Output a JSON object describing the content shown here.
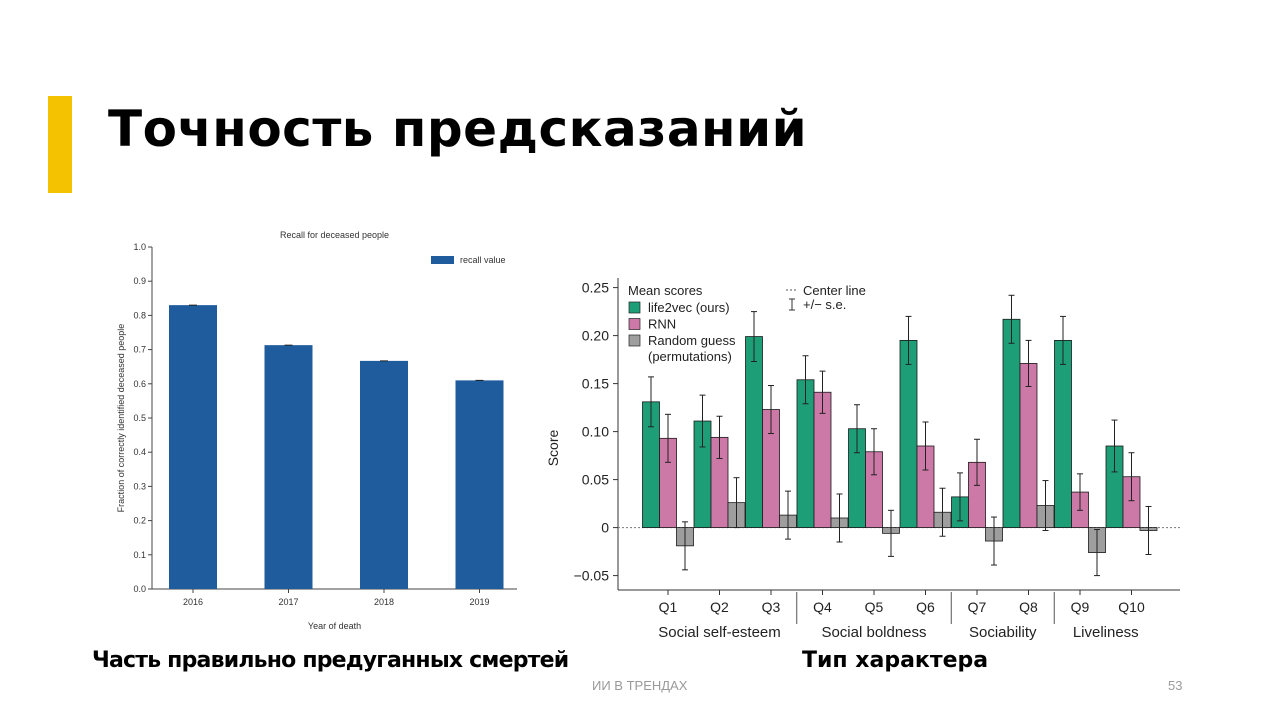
{
  "slide": {
    "title": "Точность предсказаний",
    "accent_color": "#F5C200",
    "caption_left": "Часть правильно предуганных смертей",
    "caption_right": "Тип характера",
    "footer": "ИИ В ТРЕНДАХ",
    "page_number": "53"
  },
  "chart_data": [
    {
      "type": "bar",
      "title": "Recall for deceased people",
      "xlabel": "Year of death",
      "ylabel": "Fraction of correctly identified deceased people",
      "categories": [
        "2016",
        "2017",
        "2018",
        "2019"
      ],
      "series": [
        {
          "name": "recall value",
          "values": [
            0.83,
            0.713,
            0.667,
            0.61
          ],
          "color": "#1F5C9E"
        }
      ],
      "ylim": [
        0.0,
        1.0
      ],
      "yticks": [
        0.0,
        0.1,
        0.2,
        0.3,
        0.4,
        0.5,
        0.6,
        0.7,
        0.8,
        0.9,
        1.0
      ],
      "ytick_labels": [
        "0.0",
        "0.1",
        "0.2",
        "0.3",
        "0.4",
        "0.5",
        "0.6",
        "0.7",
        "0.8",
        "0.9",
        "1.0"
      ],
      "legend_position": "top-right",
      "grid": false
    },
    {
      "type": "bar",
      "ylabel": "Score",
      "categories": [
        "Q1",
        "Q2",
        "Q3",
        "Q4",
        "Q5",
        "Q6",
        "Q7",
        "Q8",
        "Q9",
        "Q10"
      ],
      "groups": [
        {
          "label": "Social self-esteem",
          "categories": [
            "Q1",
            "Q2",
            "Q3"
          ]
        },
        {
          "label": "Social boldness",
          "categories": [
            "Q4",
            "Q5",
            "Q6"
          ]
        },
        {
          "label": "Sociability",
          "categories": [
            "Q7",
            "Q8"
          ]
        },
        {
          "label": "Liveliness",
          "categories": [
            "Q9",
            "Q10"
          ]
        }
      ],
      "legend_title": "Mean scores",
      "legend_notes": [
        "Center line",
        "+/− s.e."
      ],
      "series": [
        {
          "name": "life2vec (ours)",
          "color": "#1E9E76",
          "values": [
            0.131,
            0.111,
            0.199,
            0.154,
            0.103,
            0.195,
            0.032,
            0.217,
            0.195,
            0.085
          ],
          "se": [
            0.026,
            0.027,
            0.026,
            0.025,
            0.025,
            0.025,
            0.025,
            0.025,
            0.025,
            0.027
          ]
        },
        {
          "name": "RNN",
          "color": "#CC79A7",
          "values": [
            0.093,
            0.094,
            0.123,
            0.141,
            0.079,
            0.085,
            0.068,
            0.171,
            0.037,
            0.053
          ],
          "se": [
            0.025,
            0.022,
            0.025,
            0.022,
            0.024,
            0.025,
            0.024,
            0.024,
            0.019,
            0.025
          ]
        },
        {
          "name": "Random guess",
          "name_line2": "(permutations)",
          "color": "#9E9E9E",
          "values": [
            -0.019,
            0.026,
            0.013,
            0.01,
            -0.006,
            0.016,
            -0.014,
            0.023,
            -0.026,
            -0.003
          ],
          "se": [
            0.025,
            0.026,
            0.025,
            0.025,
            0.024,
            0.025,
            0.025,
            0.026,
            0.024,
            0.025
          ]
        }
      ],
      "ylim": [
        -0.065,
        0.26
      ],
      "yticks": [
        -0.05,
        0,
        0.05,
        0.1,
        0.15,
        0.2,
        0.25
      ],
      "ytick_labels": [
        "−0.05",
        "0",
        "0.05",
        "0.10",
        "0.15",
        "0.20",
        "0.25"
      ],
      "legend_position": "top-left",
      "grid": false
    }
  ]
}
